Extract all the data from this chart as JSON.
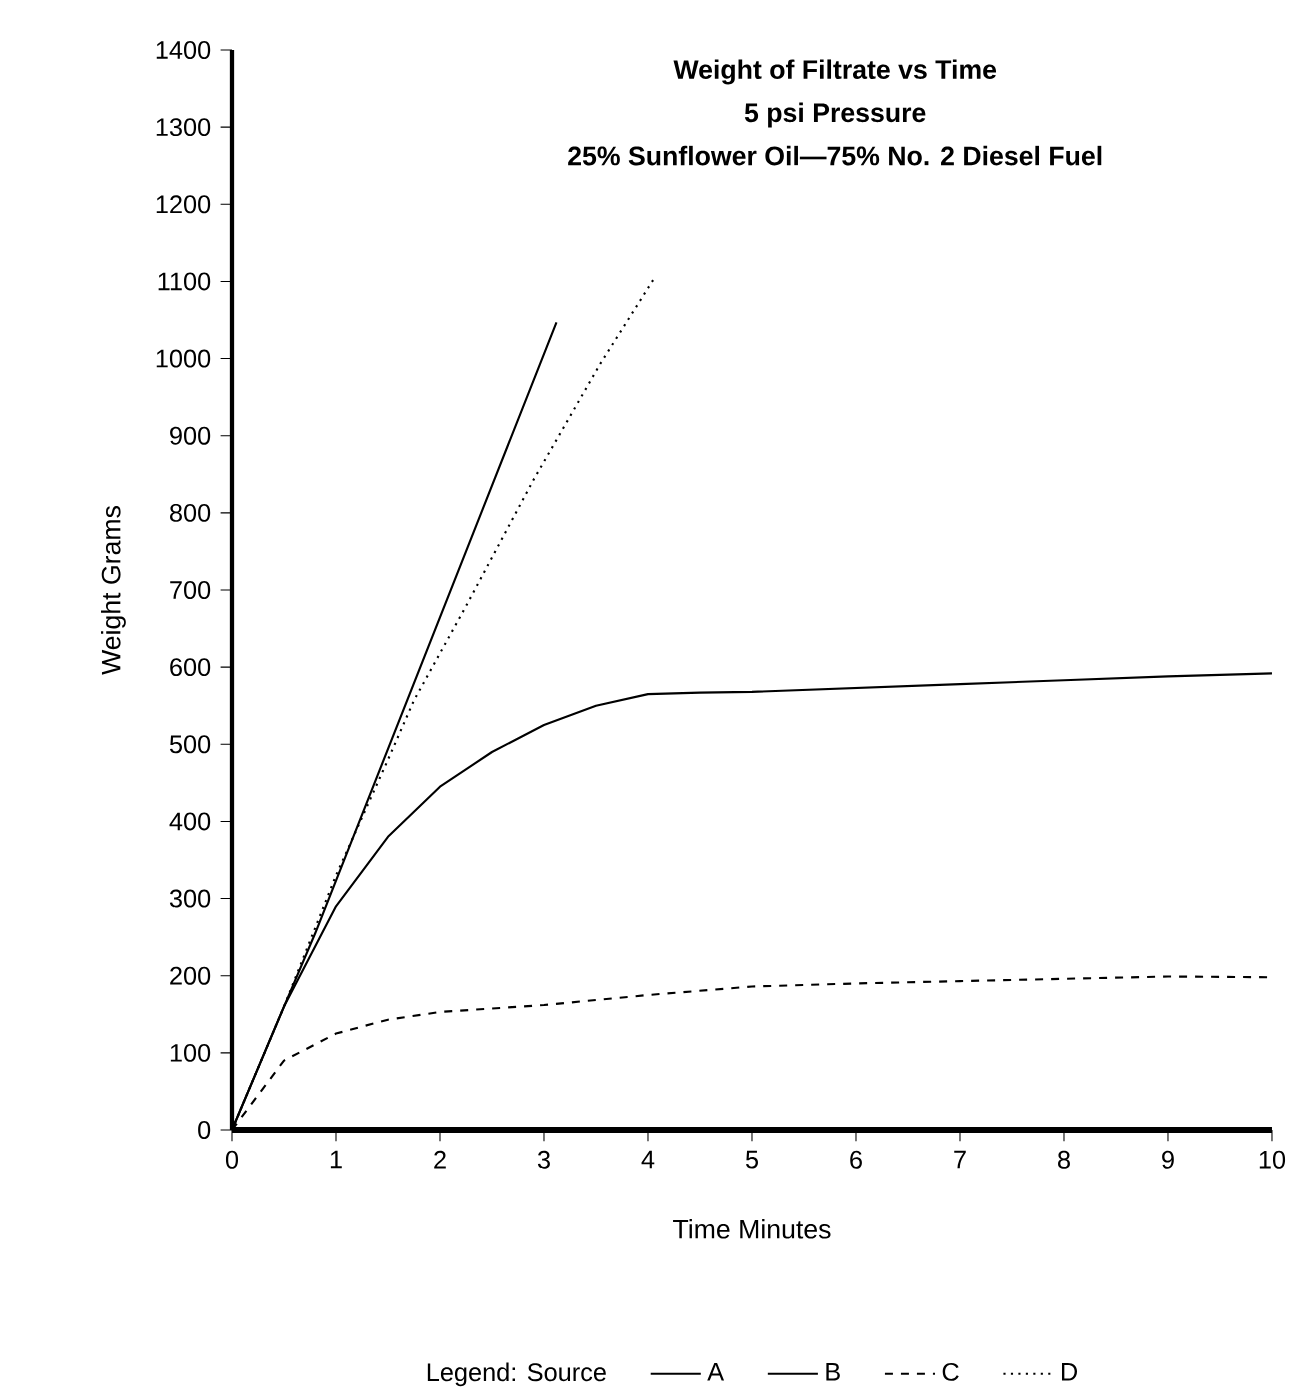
{
  "chart_data": {
    "type": "line",
    "title": "Weight of Filtrate vs Time",
    "subtitle": "5 psi Pressure",
    "annotations": [
      "25% Sunflower Oil—75% No. 2 Diesel Fuel"
    ],
    "xlabel": "Time Minutes",
    "ylabel": "Weight Grams",
    "legend_title": "Legend: Source",
    "legend": "bottom",
    "xlim": [
      0,
      10
    ],
    "xticks": [
      0,
      1,
      2,
      3,
      4,
      5,
      6,
      7,
      8,
      9,
      10
    ],
    "ylim": [
      0,
      1400
    ],
    "yticks": [
      0,
      100,
      200,
      300,
      400,
      500,
      600,
      700,
      800,
      900,
      1000,
      1100,
      1200,
      1300,
      1400
    ],
    "grid": false,
    "marker": "none",
    "series": [
      {
        "name": "A",
        "color": "#000000",
        "line_style": "solid",
        "x": [
          0,
          0.5,
          0.8,
          3.12
        ],
        "values": [
          0,
          160,
          255,
          1047
        ]
      },
      {
        "name": "B",
        "color": "#000000",
        "line_style": "solid",
        "x": [
          0,
          0.5,
          1,
          1.5,
          2,
          2.5,
          3,
          3.5,
          4,
          4.5,
          5,
          6,
          7,
          8,
          9,
          10
        ],
        "values": [
          0,
          160,
          290,
          380,
          445,
          490,
          525,
          550,
          565,
          567,
          568,
          573,
          578,
          583,
          588,
          592
        ]
      },
      {
        "name": "C",
        "color": "#000000",
        "line_style": "dashed",
        "x": [
          0,
          0.5,
          1,
          1.5,
          2,
          3,
          4,
          5,
          6,
          7,
          8,
          9,
          10
        ],
        "values": [
          0,
          90,
          125,
          143,
          153,
          162,
          175,
          186,
          190,
          193,
          196,
          199,
          198
        ]
      },
      {
        "name": "D",
        "color": "#000000",
        "line_style": "dotted",
        "x": [
          0,
          0.5,
          1,
          1.5,
          1.75,
          2.25,
          2.9,
          3.54,
          4.05
        ],
        "values": [
          0,
          160,
          330,
          480,
          557,
          679,
          843,
          993,
          1102
        ]
      }
    ]
  }
}
